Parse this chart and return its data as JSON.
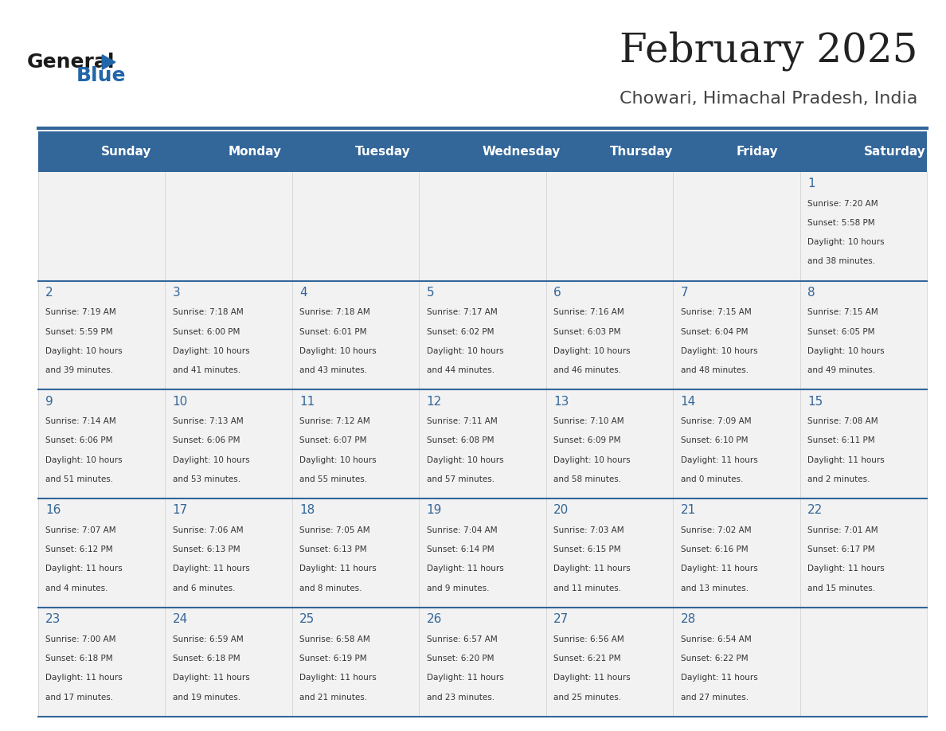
{
  "title": "February 2025",
  "subtitle": "Chowari, Himachal Pradesh, India",
  "header_bg": "#336699",
  "header_text_color": "#ffffff",
  "cell_bg_even": "#f2f2f2",
  "cell_bg_odd": "#ffffff",
  "day_names": [
    "Sunday",
    "Monday",
    "Tuesday",
    "Wednesday",
    "Thursday",
    "Friday",
    "Saturday"
  ],
  "title_color": "#222222",
  "subtitle_color": "#444444",
  "line_color": "#336699",
  "day_number_color": "#336699",
  "info_color": "#333333",
  "calendar": [
    [
      {
        "day": null,
        "sunrise": null,
        "sunset": null,
        "daylight": null
      },
      {
        "day": null,
        "sunrise": null,
        "sunset": null,
        "daylight": null
      },
      {
        "day": null,
        "sunrise": null,
        "sunset": null,
        "daylight": null
      },
      {
        "day": null,
        "sunrise": null,
        "sunset": null,
        "daylight": null
      },
      {
        "day": null,
        "sunrise": null,
        "sunset": null,
        "daylight": null
      },
      {
        "day": null,
        "sunrise": null,
        "sunset": null,
        "daylight": null
      },
      {
        "day": 1,
        "sunrise": "7:20 AM",
        "sunset": "5:58 PM",
        "daylight": "10 hours and 38 minutes."
      }
    ],
    [
      {
        "day": 2,
        "sunrise": "7:19 AM",
        "sunset": "5:59 PM",
        "daylight": "10 hours and 39 minutes."
      },
      {
        "day": 3,
        "sunrise": "7:18 AM",
        "sunset": "6:00 PM",
        "daylight": "10 hours and 41 minutes."
      },
      {
        "day": 4,
        "sunrise": "7:18 AM",
        "sunset": "6:01 PM",
        "daylight": "10 hours and 43 minutes."
      },
      {
        "day": 5,
        "sunrise": "7:17 AM",
        "sunset": "6:02 PM",
        "daylight": "10 hours and 44 minutes."
      },
      {
        "day": 6,
        "sunrise": "7:16 AM",
        "sunset": "6:03 PM",
        "daylight": "10 hours and 46 minutes."
      },
      {
        "day": 7,
        "sunrise": "7:15 AM",
        "sunset": "6:04 PM",
        "daylight": "10 hours and 48 minutes."
      },
      {
        "day": 8,
        "sunrise": "7:15 AM",
        "sunset": "6:05 PM",
        "daylight": "10 hours and 49 minutes."
      }
    ],
    [
      {
        "day": 9,
        "sunrise": "7:14 AM",
        "sunset": "6:06 PM",
        "daylight": "10 hours and 51 minutes."
      },
      {
        "day": 10,
        "sunrise": "7:13 AM",
        "sunset": "6:06 PM",
        "daylight": "10 hours and 53 minutes."
      },
      {
        "day": 11,
        "sunrise": "7:12 AM",
        "sunset": "6:07 PM",
        "daylight": "10 hours and 55 minutes."
      },
      {
        "day": 12,
        "sunrise": "7:11 AM",
        "sunset": "6:08 PM",
        "daylight": "10 hours and 57 minutes."
      },
      {
        "day": 13,
        "sunrise": "7:10 AM",
        "sunset": "6:09 PM",
        "daylight": "10 hours and 58 minutes."
      },
      {
        "day": 14,
        "sunrise": "7:09 AM",
        "sunset": "6:10 PM",
        "daylight": "11 hours and 0 minutes."
      },
      {
        "day": 15,
        "sunrise": "7:08 AM",
        "sunset": "6:11 PM",
        "daylight": "11 hours and 2 minutes."
      }
    ],
    [
      {
        "day": 16,
        "sunrise": "7:07 AM",
        "sunset": "6:12 PM",
        "daylight": "11 hours and 4 minutes."
      },
      {
        "day": 17,
        "sunrise": "7:06 AM",
        "sunset": "6:13 PM",
        "daylight": "11 hours and 6 minutes."
      },
      {
        "day": 18,
        "sunrise": "7:05 AM",
        "sunset": "6:13 PM",
        "daylight": "11 hours and 8 minutes."
      },
      {
        "day": 19,
        "sunrise": "7:04 AM",
        "sunset": "6:14 PM",
        "daylight": "11 hours and 9 minutes."
      },
      {
        "day": 20,
        "sunrise": "7:03 AM",
        "sunset": "6:15 PM",
        "daylight": "11 hours and 11 minutes."
      },
      {
        "day": 21,
        "sunrise": "7:02 AM",
        "sunset": "6:16 PM",
        "daylight": "11 hours and 13 minutes."
      },
      {
        "day": 22,
        "sunrise": "7:01 AM",
        "sunset": "6:17 PM",
        "daylight": "11 hours and 15 minutes."
      }
    ],
    [
      {
        "day": 23,
        "sunrise": "7:00 AM",
        "sunset": "6:18 PM",
        "daylight": "11 hours and 17 minutes."
      },
      {
        "day": 24,
        "sunrise": "6:59 AM",
        "sunset": "6:18 PM",
        "daylight": "11 hours and 19 minutes."
      },
      {
        "day": 25,
        "sunrise": "6:58 AM",
        "sunset": "6:19 PM",
        "daylight": "11 hours and 21 minutes."
      },
      {
        "day": 26,
        "sunrise": "6:57 AM",
        "sunset": "6:20 PM",
        "daylight": "11 hours and 23 minutes."
      },
      {
        "day": 27,
        "sunrise": "6:56 AM",
        "sunset": "6:21 PM",
        "daylight": "11 hours and 25 minutes."
      },
      {
        "day": 28,
        "sunrise": "6:54 AM",
        "sunset": "6:22 PM",
        "daylight": "11 hours and 27 minutes."
      },
      {
        "day": null,
        "sunrise": null,
        "sunset": null,
        "daylight": null
      }
    ]
  ]
}
